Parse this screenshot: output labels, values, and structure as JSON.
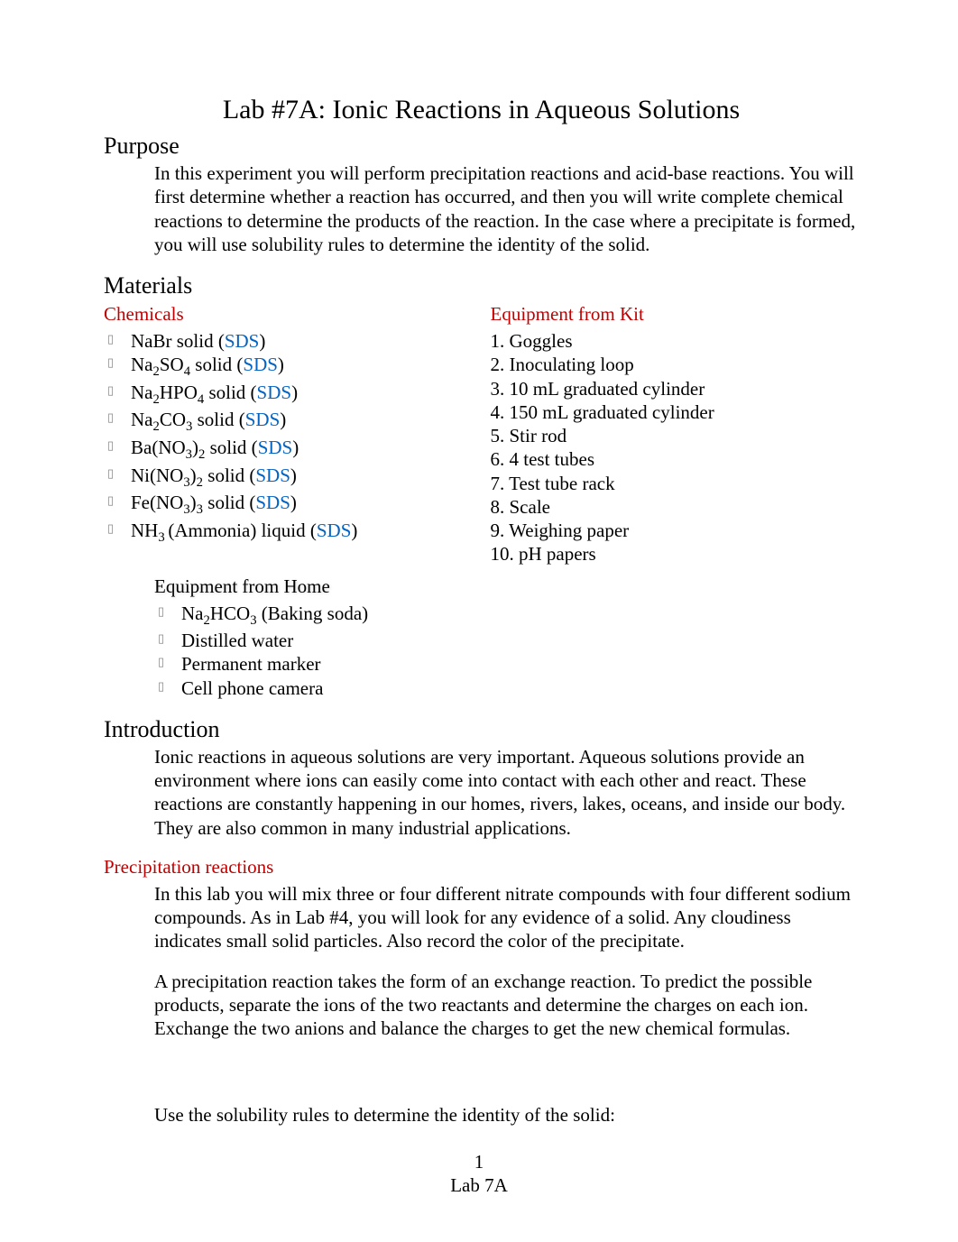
{
  "title": "Lab #7A: Ionic Reactions in Aqueous Solutions",
  "purpose": {
    "heading": "Purpose",
    "text": "In this experiment you will perform precipitation reactions and acid-base reactions. You will first determine whether a reaction has occurred, and then you will write complete chemical reactions to determine the products of the reaction. In the case where a precipitate is formed, you will use solubility rules to determine the identity of the solid."
  },
  "materials": {
    "heading": "Materials",
    "chemicals_heading": "Chemicals",
    "sds_label": "SDS",
    "chemicals": [
      {
        "pre": "NaBr solid (",
        "html": "NaBr solid ("
      },
      {
        "pre": "Na2SO4 solid (",
        "html": "Na<sub>2</sub>SO<sub>4</sub> solid ("
      },
      {
        "pre": "Na2HPO4 solid (",
        "html": "Na<sub>2</sub>HPO<sub>4</sub> solid ("
      },
      {
        "pre": "Na2CO3 solid (",
        "html": "Na<sub>2</sub>CO<sub>3</sub> solid ("
      },
      {
        "pre": "Ba(NO3)2 solid (",
        "html": "Ba(NO<sub>3</sub>)<sub>2</sub> solid ("
      },
      {
        "pre": "Ni(NO3)2 solid (",
        "html": "Ni(NO<sub>3</sub>)<sub>2</sub> solid ("
      },
      {
        "pre": "Fe(NO3)3 solid (",
        "html": "Fe(NO<sub>3</sub>)<sub>3</sub> solid ("
      },
      {
        "pre": "NH3 (Ammonia) liquid (",
        "html": "NH<sub>3 </sub>(Ammonia) liquid ("
      }
    ],
    "equipment_kit_heading": "Equipment from Kit",
    "equipment_kit": [
      "Goggles",
      "Inoculating loop",
      "10 mL graduated cylinder",
      "150 mL graduated cylinder",
      "Stir rod",
      "4 test tubes",
      "Test tube rack",
      "Scale",
      "Weighing paper",
      "pH papers"
    ],
    "equipment_home_heading": "Equipment from Home",
    "equipment_home": [
      {
        "html": "Na<sub>2</sub>HCO<sub>3</sub> (Baking soda)"
      },
      {
        "html": "Distilled water"
      },
      {
        "html": "Permanent marker"
      },
      {
        "html": "Cell phone camera"
      }
    ]
  },
  "introduction": {
    "heading": "Introduction",
    "text": "Ionic reactions in aqueous solutions are very important. Aqueous solutions provide an environment where ions can easily come into contact with each other and react. These reactions are constantly happening in our homes, rivers, lakes, oceans, and inside our body. They are also common in many industrial applications."
  },
  "precipitation": {
    "heading": "Precipitation reactions",
    "p1": "In this lab you will mix three or four different nitrate compounds with four different sodium compounds. As in Lab #4, you will look for any evidence of a solid. Any cloudiness indicates small solid particles. Also record the color of the precipitate.",
    "p2": "A precipitation reaction takes the form of an exchange reaction. To predict the possible products, separate the ions of the two reactants and determine the charges on each ion. Exchange the two anions and balance the charges to get the new chemical formulas.",
    "p3": "Use the solubility rules to determine the identity of the solid:"
  },
  "footer": {
    "page_num": "1",
    "lab_label": "Lab 7A"
  },
  "colors": {
    "link": "#0563c1",
    "heading_red": "#c00000",
    "text": "#000000",
    "background": "#ffffff",
    "bullet_marker": "#888888"
  },
  "typography": {
    "title_fontsize": 30,
    "h2_fontsize": 26,
    "body_fontsize": 21,
    "font_family": "Times New Roman"
  }
}
